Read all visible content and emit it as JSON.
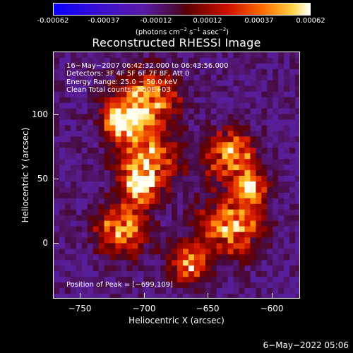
{
  "colorbar": {
    "ticks": [
      "-0.00062",
      "-0.00037",
      "-0.00012",
      "0.00012",
      "0.00037",
      "0.00062"
    ],
    "units_prefix": "(photons cm",
    "units_exp1": "−2",
    "units_mid": " s",
    "units_exp2": "−1",
    "units_mid2": " asec",
    "units_exp3": "−2",
    "units_suffix": ")"
  },
  "title": "Reconstructed RHESSI Image",
  "info": {
    "line1": "16−May−2007 06:42:32.000 to 06:43:56.000",
    "line2": "Detectors: 3F 4F 5F 6F 7F 8F, Att 0",
    "line3": "Energy Range: 25.0 − 50.0 keV",
    "line4": "Clean     Total counts: 2.50E+03"
  },
  "peak": "Position of Peak = [−699,109]",
  "axes": {
    "xlabel": "Heliocentric X (arcsec)",
    "ylabel": "Heliocentric Y (arcsec)",
    "xticks": [
      "−750",
      "−700",
      "−650",
      "−600"
    ],
    "yticks": [
      "100",
      "50",
      "0"
    ]
  },
  "footer_date": "6−May−2022 05:06"
}
